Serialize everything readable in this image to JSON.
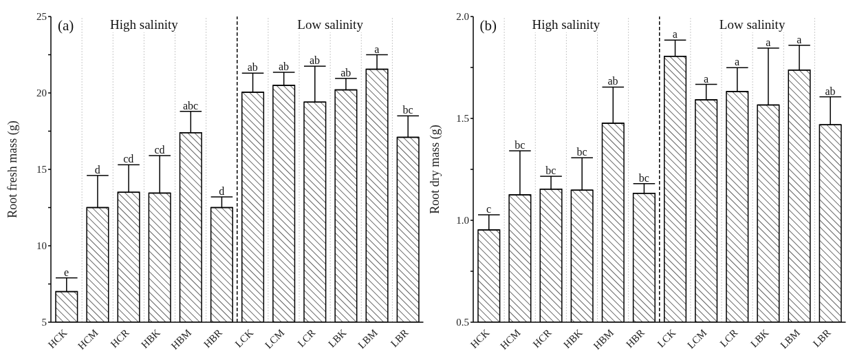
{
  "chart_data": [
    {
      "type": "bar",
      "ylabel": "Root fresh mass (g)",
      "categories": [
        "HCK",
        "HCM",
        "HCR",
        "HBK",
        "HBM",
        "HBR",
        "LCK",
        "LCM",
        "LCR",
        "LBK",
        "LBM",
        "LBR"
      ],
      "values": [
        7.0,
        12.5,
        13.5,
        13.45,
        17.4,
        12.5,
        20.05,
        20.5,
        19.4,
        20.2,
        21.55,
        17.1
      ],
      "errors": [
        0.9,
        2.1,
        1.8,
        2.45,
        1.4,
        0.7,
        1.25,
        0.85,
        2.35,
        0.75,
        0.95,
        1.4
      ],
      "color": "#000000",
      "ylim": [
        5,
        25
      ],
      "yticks": [
        5,
        {
          "value": 7.5,
          "label": null
        },
        10,
        {
          "value": 12.5,
          "label": null
        },
        15,
        {
          "value": 17.5,
          "label": null
        },
        20,
        {
          "value": 22.5,
          "label": null
        },
        25
      ],
      "grid": "x",
      "ref_lines": [
        {
          "axis": "x",
          "value": "HBR",
          "line_style": "dashed"
        }
      ],
      "annotations": [
        "(a)",
        "High salinity",
        "Low salinity",
        {
          "text": "e",
          "x": "HCK",
          "y": 7.9
        },
        {
          "text": "d",
          "x": "HCM",
          "y": 14.6
        },
        {
          "text": "cd",
          "x": "HCR",
          "y": 15.3
        },
        {
          "text": "cd",
          "x": "HBK",
          "y": 15.9
        },
        {
          "text": "abc",
          "x": "HBM",
          "y": 18.8
        },
        {
          "text": "d",
          "x": "HBR",
          "y": 13.2
        },
        {
          "text": "ab",
          "x": "LCK",
          "y": 21.3
        },
        {
          "text": "ab",
          "x": "LCM",
          "y": 21.35
        },
        {
          "text": "ab",
          "x": "LCR",
          "y": 21.75
        },
        {
          "text": "ab",
          "x": "LBK",
          "y": 20.95
        },
        {
          "text": "a",
          "x": "LBM",
          "y": 22.5
        },
        {
          "text": "bc",
          "x": "LBR",
          "y": 18.5
        }
      ]
    },
    {
      "type": "bar",
      "ylabel": "Root dry mass (g)",
      "categories": [
        "HCK",
        "HCM",
        "HCR",
        "HBK",
        "HBM",
        "HBR",
        "LCK",
        "LCM",
        "LCR",
        "LBK",
        "LBM",
        "LBR"
      ],
      "values": [
        0.953,
        1.125,
        1.153,
        1.148,
        1.476,
        1.133,
        1.805,
        1.591,
        1.632,
        1.566,
        1.737,
        1.469
      ],
      "errors": [
        0.074,
        0.216,
        0.063,
        0.159,
        0.178,
        0.047,
        0.079,
        0.076,
        0.117,
        0.279,
        0.122,
        0.137
      ],
      "color": "#000000",
      "ylim": [
        0.5,
        2.0
      ],
      "yticks": [
        0.5,
        {
          "value": 0.75,
          "label": null
        },
        {
          "value": 1.0,
          "label": "1.0"
        },
        {
          "value": 1.25,
          "label": null
        },
        1.5,
        {
          "value": 1.75,
          "label": null
        },
        {
          "value": 2.0,
          "label": "2.0"
        }
      ],
      "grid": "x",
      "ref_lines": [
        {
          "axis": "x",
          "value": "HBR",
          "line_style": "dashed"
        }
      ],
      "annotations": [
        "(b)",
        "High salinity",
        "Low salinity",
        {
          "text": "c",
          "x": "HCK",
          "y": 1.027
        },
        {
          "text": "bc",
          "x": "HCM",
          "y": 1.341
        },
        {
          "text": "bc",
          "x": "HCR",
          "y": 1.216
        },
        {
          "text": "bc",
          "x": "HBK",
          "y": 1.307
        },
        {
          "text": "ab",
          "x": "HBM",
          "y": 1.654
        },
        {
          "text": "bc",
          "x": "HBR",
          "y": 1.18
        },
        {
          "text": "a",
          "x": "LCK",
          "y": 1.884
        },
        {
          "text": "a",
          "x": "LCM",
          "y": 1.667
        },
        {
          "text": "a",
          "x": "LCR",
          "y": 1.749
        },
        {
          "text": "a",
          "x": "LBK",
          "y": 1.845
        },
        {
          "text": "a",
          "x": "LBM",
          "y": 1.859
        },
        {
          "text": "ab",
          "x": "LBR",
          "y": 1.606
        }
      ]
    }
  ]
}
